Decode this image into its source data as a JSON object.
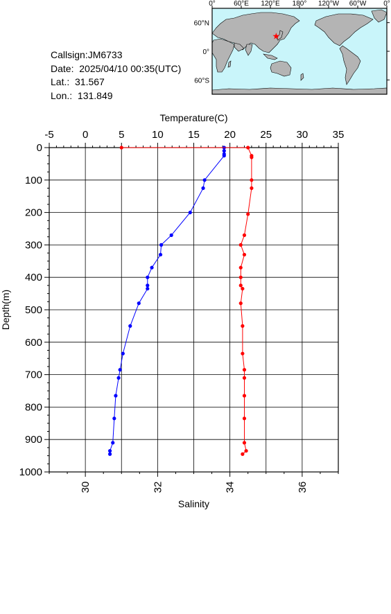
{
  "station": {
    "callsign": "Callsign:JM6733",
    "date": "Date:  2025/04/10 00:35(UTC)",
    "lat": "Lat.:  31.567",
    "lon": "Lon.:  131.849"
  },
  "map": {
    "lon_labels": [
      "0°",
      "60°E",
      "120°E",
      "180°",
      "120°W",
      "60°W",
      "0°"
    ],
    "lat_labels": [
      "60°N",
      "0°",
      "60°S"
    ],
    "ocean_color": "#c9f5fa",
    "land_color": "#b4b4b4",
    "marker_color": "#ff0000",
    "marker": {
      "lon": 131.849,
      "lat": 31.567
    }
  },
  "chart_data": {
    "type": "line",
    "y_axis": {
      "label": "Depth(m)",
      "range": [
        0,
        1000
      ],
      "inverted": true,
      "ticks": [
        "0",
        "100",
        "200",
        "300",
        "400",
        "500",
        "600",
        "700",
        "800",
        "900",
        "1000"
      ]
    },
    "x_top": {
      "label": "Temperature(C)",
      "range": [
        -5,
        35
      ],
      "ticks": [
        "-5",
        "0",
        "5",
        "10",
        "15",
        "20",
        "25",
        "30",
        "35"
      ]
    },
    "x_bottom": {
      "label": "Salinity",
      "range": [
        29,
        37
      ],
      "ticks": [
        "30",
        "32",
        "34",
        "36"
      ]
    },
    "grid": true,
    "series": [
      {
        "axis": "temperature",
        "color": "#0000ff",
        "points": [
          [
            19.2,
            0
          ],
          [
            19.2,
            10
          ],
          [
            19.2,
            20
          ],
          [
            19.2,
            25
          ],
          [
            16.5,
            100
          ],
          [
            16.3,
            125
          ],
          [
            14.5,
            200
          ],
          [
            11.9,
            270
          ],
          [
            10.5,
            300
          ],
          [
            10.4,
            330
          ],
          [
            9.2,
            370
          ],
          [
            8.6,
            400
          ],
          [
            8.6,
            425
          ],
          [
            8.6,
            435
          ],
          [
            7.4,
            480
          ],
          [
            6.2,
            550
          ],
          [
            5.2,
            635
          ],
          [
            4.8,
            685
          ],
          [
            4.6,
            710
          ],
          [
            4.2,
            765
          ],
          [
            4.0,
            835
          ],
          [
            3.8,
            910
          ],
          [
            3.4,
            935
          ],
          [
            3.4,
            945
          ]
        ]
      },
      {
        "axis": "salinity",
        "color": "#ff0000",
        "points": [
          [
            31.0,
            0
          ],
          [
            34.5,
            0
          ],
          [
            34.6,
            25
          ],
          [
            34.6,
            30
          ],
          [
            34.6,
            100
          ],
          [
            34.6,
            125
          ],
          [
            34.5,
            205
          ],
          [
            34.4,
            270
          ],
          [
            34.3,
            300
          ],
          [
            34.4,
            330
          ],
          [
            34.3,
            370
          ],
          [
            34.3,
            400
          ],
          [
            34.3,
            425
          ],
          [
            34.35,
            435
          ],
          [
            34.3,
            480
          ],
          [
            34.35,
            550
          ],
          [
            34.35,
            635
          ],
          [
            34.4,
            685
          ],
          [
            34.4,
            710
          ],
          [
            34.4,
            765
          ],
          [
            34.4,
            835
          ],
          [
            34.4,
            910
          ],
          [
            34.45,
            935
          ],
          [
            34.35,
            945
          ]
        ]
      }
    ]
  }
}
